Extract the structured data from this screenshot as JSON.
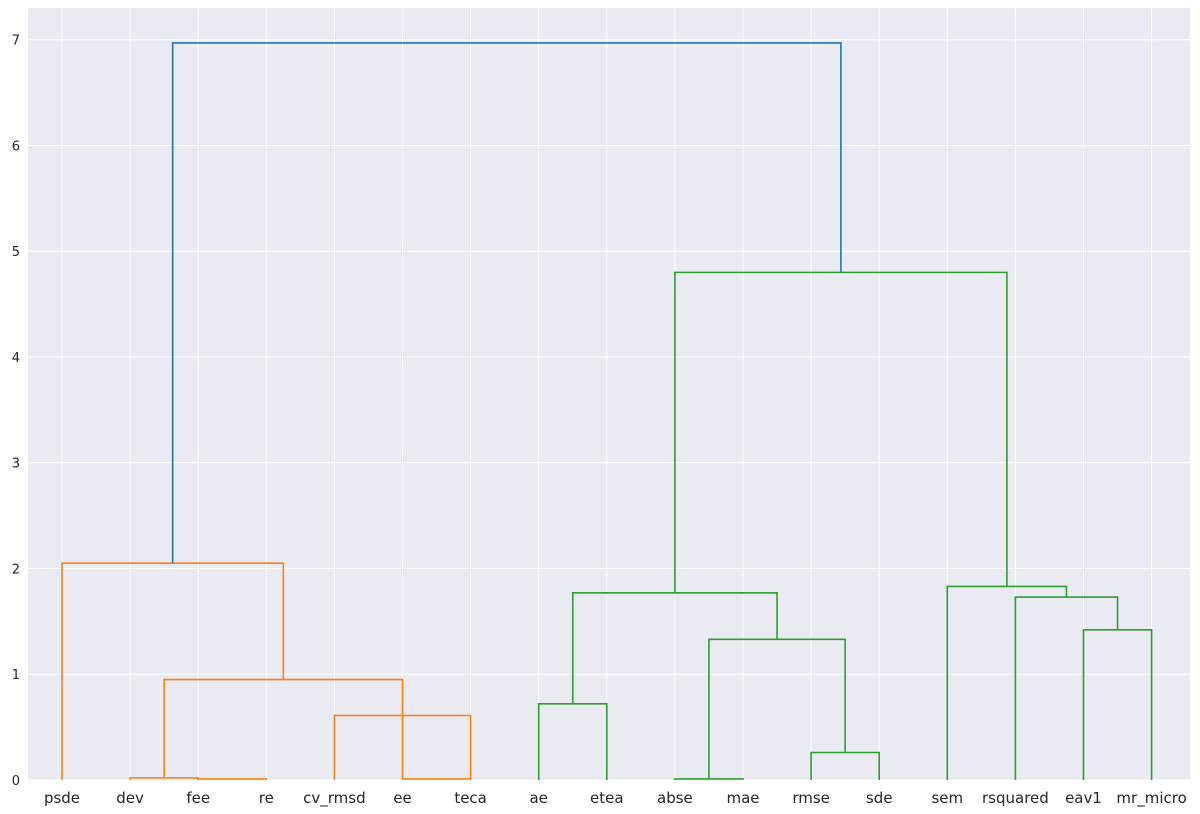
{
  "chart_data": {
    "type": "dendrogram",
    "title": "",
    "xlabel": "",
    "ylabel": "",
    "ylim": [
      0,
      7.3
    ],
    "y_ticks": [
      "0",
      "1",
      "2",
      "3",
      "4",
      "5",
      "6",
      "7"
    ],
    "leaves": [
      "psde",
      "dev",
      "fee",
      "re",
      "cv_rmsd",
      "ee",
      "teca",
      "ae",
      "etea",
      "abse",
      "mae",
      "rmse",
      "sde",
      "sem",
      "rsquared",
      "eav1",
      "mr_micro"
    ],
    "cluster_colors": {
      "C0": "#1f77b4",
      "C1": "#ff7f0e",
      "C2": "#2ca02c"
    },
    "merges": [
      {
        "left": 1,
        "right": 2,
        "height": 0.02,
        "color": "C1"
      },
      {
        "left": 2,
        "right": 3,
        "height": 0.01,
        "color": "C1"
      },
      {
        "left": 4,
        "right": 6,
        "height": 0.61,
        "color": "C1"
      },
      {
        "left": 5,
        "right": 6,
        "height": 0.01,
        "color": "C1"
      },
      {
        "left": 1.5,
        "right": 5,
        "height": 0.95,
        "color": "C1"
      },
      {
        "left": 0,
        "right": 3.25,
        "height": 2.05,
        "color": "C1"
      },
      {
        "left": 7,
        "right": 8,
        "height": 0.72,
        "color": "C2"
      },
      {
        "left": 9,
        "right": 10,
        "height": 0.01,
        "color": "C2"
      },
      {
        "left": 11,
        "right": 12,
        "height": 0.26,
        "color": "C2"
      },
      {
        "left": 9.5,
        "right": 11.5,
        "height": 1.33,
        "color": "C2"
      },
      {
        "left": 7.5,
        "right": 10.5,
        "height": 1.77,
        "color": "C2"
      },
      {
        "left": 15,
        "right": 16,
        "height": 1.42,
        "color": "C2"
      },
      {
        "left": 14,
        "right": 15.5,
        "height": 1.73,
        "color": "C2"
      },
      {
        "left": 13,
        "right": 14.75,
        "height": 1.83,
        "color": "C2"
      },
      {
        "left": 9,
        "right": 13.875,
        "height": 4.8,
        "color": "C2"
      },
      {
        "left": 1.625,
        "right": 11.4375,
        "height": 6.97,
        "color": "C0"
      }
    ],
    "background": "#eaeaf2",
    "grid": true
  }
}
